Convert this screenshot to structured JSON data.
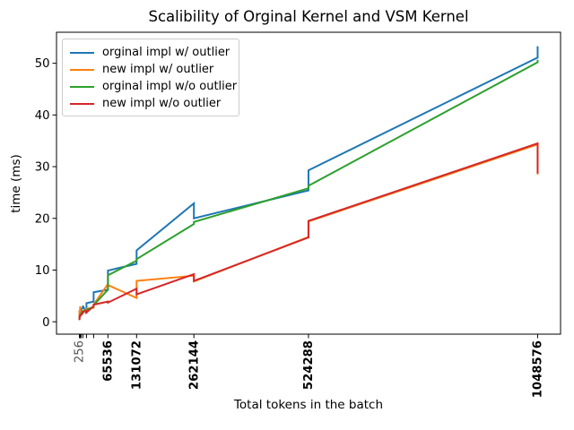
{
  "title": "Scalibility of Orginal Kernel and VSM Kernel",
  "chart_data": {
    "type": "line",
    "title": "Scalibility of Orginal Kernel and VSM Kernel",
    "xlabel": "Total tokens in the batch",
    "ylabel": "time (ms)",
    "grid": false,
    "legend_position": "upper left",
    "xlim": [
      -52160,
      1100992
    ],
    "ylim": [
      -2.4,
      56.0
    ],
    "y_ticks": [
      0,
      10,
      20,
      30,
      40,
      50
    ],
    "x": [
      256,
      512,
      1024,
      2048,
      4096,
      8192,
      16384,
      32768,
      65536,
      131072,
      262144,
      524288,
      1048576
    ],
    "x_tick_label_values": [
      256,
      65536,
      131072,
      262144,
      524288,
      1048576
    ],
    "x_tick_labels": [
      "256",
      "65536",
      "131072",
      "262144",
      "524288",
      "1048576"
    ],
    "note": "each batch size has two timing samples per series, plotted in sequence (pairs), producing vertical spikes",
    "series": [
      {
        "name": "orginal impl w/ outlier",
        "color": "#1f77b4",
        "pairs": [
          [
            0.6,
            1.0
          ],
          [
            0.9,
            1.3
          ],
          [
            1.3,
            1.7
          ],
          [
            1.8,
            2.1
          ],
          [
            2.1,
            2.5
          ],
          [
            2.6,
            3.1
          ],
          [
            1.6,
            3.6
          ],
          [
            3.9,
            5.7
          ],
          [
            6.2,
            9.9
          ],
          [
            11.2,
            13.8
          ],
          [
            22.9,
            20.0
          ],
          [
            25.4,
            29.3
          ],
          [
            51.1,
            53.3
          ]
        ]
      },
      {
        "name": "new impl w/ outlier",
        "color": "#ff7f0e",
        "pairs": [
          [
            0.5,
            2.2
          ],
          [
            0.8,
            1.1
          ],
          [
            1.1,
            1.3
          ],
          [
            3.0,
            1.5
          ],
          [
            1.6,
            1.8
          ],
          [
            1.9,
            2.1
          ],
          [
            2.3,
            2.5
          ],
          [
            2.7,
            3.3
          ],
          [
            7.3,
            7.1
          ],
          [
            4.6,
            7.9
          ],
          [
            8.9,
            7.8
          ],
          [
            16.4,
            19.4
          ],
          [
            34.3,
            28.5
          ]
        ]
      },
      {
        "name": "orginal impl w/o outlier",
        "color": "#2ca02c",
        "pairs": [
          [
            0.4,
            0.6
          ],
          [
            0.6,
            0.8
          ],
          [
            0.9,
            1.1
          ],
          [
            1.2,
            1.4
          ],
          [
            1.5,
            1.7
          ],
          [
            1.8,
            2.0
          ],
          [
            2.1,
            2.3
          ],
          [
            2.9,
            3.2
          ],
          [
            6.2,
            9.0
          ],
          [
            11.8,
            12.1
          ],
          [
            18.9,
            19.3
          ],
          [
            25.8,
            26.3
          ],
          [
            50.2,
            50.7
          ]
        ]
      },
      {
        "name": "new impl w/o outlier",
        "color": "#d62728",
        "pairs": [
          [
            0.3,
            0.5
          ],
          [
            0.6,
            0.8
          ],
          [
            0.9,
            1.1
          ],
          [
            1.3,
            1.1
          ],
          [
            1.5,
            1.3
          ],
          [
            1.7,
            1.9
          ],
          [
            2.1,
            1.8
          ],
          [
            3.0,
            3.3
          ],
          [
            3.9,
            3.7
          ],
          [
            6.4,
            5.3
          ],
          [
            9.2,
            7.9
          ],
          [
            16.3,
            19.5
          ],
          [
            34.5,
            28.7
          ]
        ]
      }
    ]
  }
}
